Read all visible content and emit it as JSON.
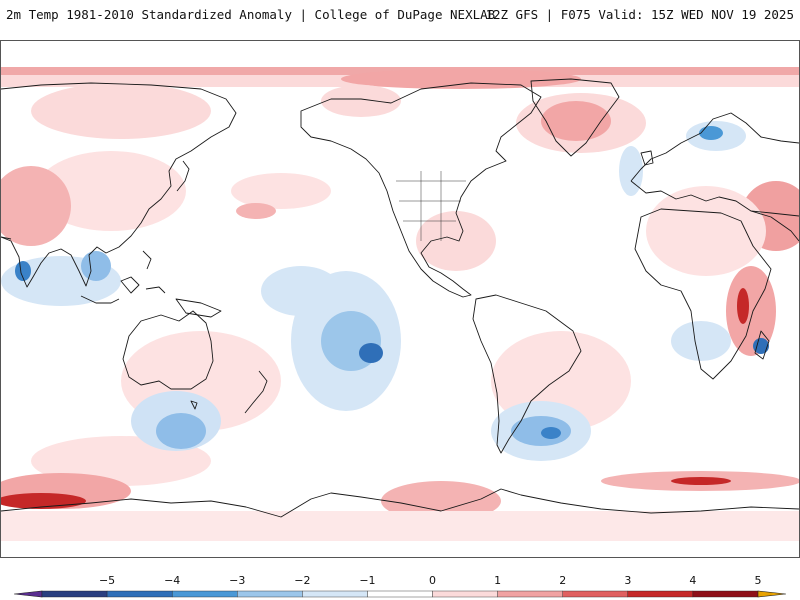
{
  "header": {
    "left": "2m Temp 1981-2010 Standardized Anomaly | College of DuPage NEXLAB",
    "right": "12Z GFS | F075 Valid: 15Z WED NOV 19 2025"
  },
  "map": {
    "projection": "equirectangular",
    "center_longitude": "180",
    "variable": "2m temperature standardized anomaly",
    "anomalies": [
      {
        "region": "arctic",
        "sign": "warm",
        "value": 1.5
      },
      {
        "region": "greenland",
        "sign": "warm",
        "value": 1.8
      },
      {
        "region": "central-asia",
        "sign": "warm",
        "value": 2.0
      },
      {
        "region": "east-africa",
        "sign": "warm",
        "value": 3.5
      },
      {
        "region": "antarctica-south-of-australia",
        "sign": "warm",
        "value": 3.0
      },
      {
        "region": "antarctica-atlantic-sector",
        "sign": "warm",
        "value": 3.5
      },
      {
        "region": "south-pacific-central",
        "sign": "cold",
        "value": -3.0
      },
      {
        "region": "south-of-australia-ocean",
        "sign": "cold",
        "value": -2.5
      },
      {
        "region": "south-atlantic-patagonia",
        "sign": "cold",
        "value": -3.0
      },
      {
        "region": "india-southeast-asia",
        "sign": "cold",
        "value": -3.5
      },
      {
        "region": "scandinavia",
        "sign": "cold",
        "value": -2.5
      }
    ]
  },
  "colorbar": {
    "ticks": [
      "-5",
      "-4",
      "-3",
      "-2",
      "-1",
      "0",
      "1",
      "2",
      "3",
      "4",
      "5"
    ],
    "colors": [
      "#5a2d91",
      "#2a3f80",
      "#2f6fb8",
      "#4a98d6",
      "#9cc6ea",
      "#d5e6f6",
      "#ffffff",
      "#fbdada",
      "#f0a2a2",
      "#e06060",
      "#c52828",
      "#8e0f18",
      "#e8a200"
    ]
  }
}
